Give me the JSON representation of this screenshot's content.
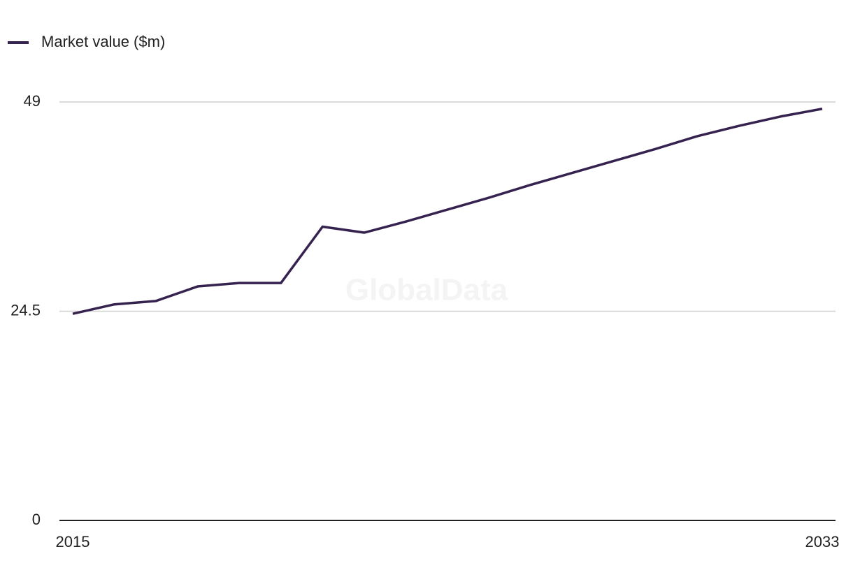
{
  "chart_data": {
    "type": "line",
    "x": [
      2015,
      2016,
      2017,
      2018,
      2019,
      2020,
      2021,
      2022,
      2023,
      2024,
      2025,
      2026,
      2027,
      2028,
      2029,
      2030,
      2031,
      2032,
      2033
    ],
    "series": [
      {
        "name": "Market value ($m)",
        "color": "#35224f",
        "values": [
          24.2,
          25.3,
          25.7,
          27.4,
          27.8,
          27.8,
          34.4,
          33.7,
          35.0,
          36.4,
          37.8,
          39.3,
          40.7,
          42.1,
          43.5,
          45.0,
          46.2,
          47.3,
          48.2
        ]
      }
    ],
    "xlim": [
      2015,
      2033
    ],
    "xticks": [
      2015,
      2033
    ],
    "ylim": [
      0,
      49
    ],
    "yticks": [
      0,
      24.5,
      49
    ],
    "grid": true,
    "legend": "top-left",
    "watermark": "GlobalData"
  }
}
